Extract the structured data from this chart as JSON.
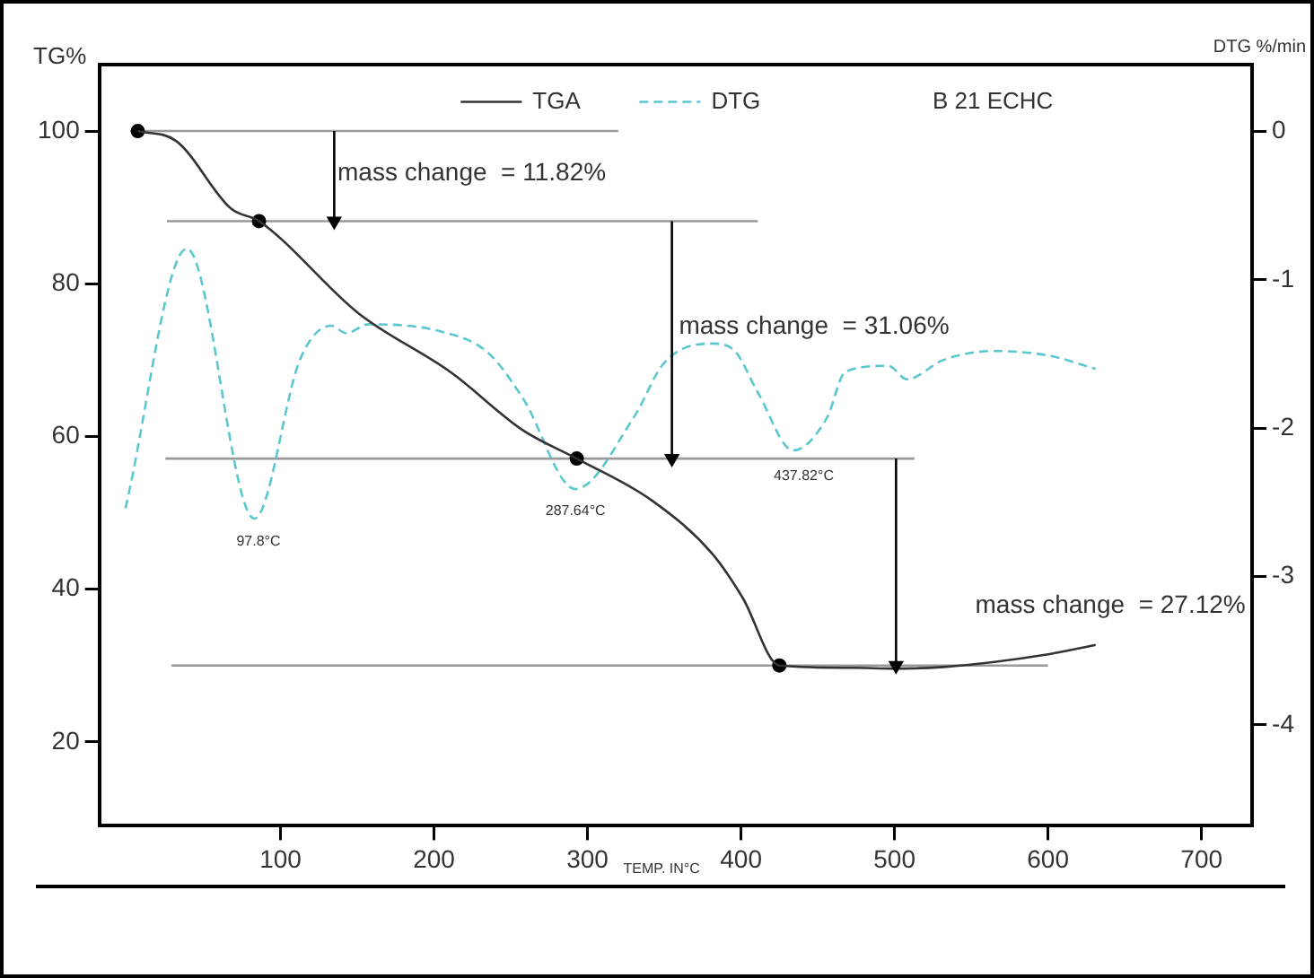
{
  "chart_data": {
    "type": "line",
    "xlabel": "TEMP. IN°C",
    "ylabel": "TG%",
    "y2label": "DTG %/min",
    "xlim": [
      -18,
      733
    ],
    "xticks": [
      100,
      200,
      300,
      400,
      500,
      600,
      700
    ],
    "ylim": [
      9,
      108.7
    ],
    "yticks": [
      20,
      40,
      60,
      80,
      100
    ],
    "y2lim": [
      -4.68,
      0.45
    ],
    "y2ticks": [
      0,
      -1,
      -2,
      -3,
      -4
    ],
    "grid": false,
    "legend": "top",
    "series": [
      {
        "name": "TGA",
        "type": "line",
        "color": "#333333",
        "line_style": "solid",
        "x": [
          7,
          32,
          68,
          86,
          151,
          211,
          258,
          293,
          342,
          381,
          401,
          425,
          473,
          500,
          532,
          601,
          631
        ],
        "values": [
          100,
          98.7,
          89.8,
          88.2,
          76.1,
          68.4,
          60.8,
          57.1,
          51.6,
          44.7,
          38.9,
          30,
          29.7,
          29.6,
          29.8,
          31.5,
          32.7
        ]
      },
      {
        "name": "DTG",
        "type": "line",
        "axis": "y2",
        "color": "#5bc8d0",
        "line_style": "dashed",
        "x": [
          -1,
          39,
          83,
          113,
          133,
          143,
          157,
          205,
          235,
          258,
          292,
          330,
          350,
          381,
          395,
          411,
          434,
          456,
          468,
          496,
          508,
          532,
          564,
          600,
          631
        ],
        "values": [
          -2.54,
          -0.79,
          -2.61,
          -1.53,
          -1.31,
          -1.36,
          -1.3,
          -1.35,
          -1.49,
          -1.8,
          -2.41,
          -1.93,
          -1.56,
          -1.43,
          -1.47,
          -1.76,
          -2.15,
          -1.93,
          -1.62,
          -1.58,
          -1.67,
          -1.54,
          -1.48,
          -1.51,
          -1.6
        ]
      },
      {
        "type": "scatter",
        "color": "#000000",
        "marker": "circle",
        "x": [
          7,
          86,
          293,
          425
        ],
        "values": [
          100,
          88.2,
          57.1,
          30
        ]
      },
      {
        "type": "line",
        "color": "#999999",
        "x": [
          7,
          320
        ],
        "values": [
          100,
          100
        ]
      },
      {
        "type": "line",
        "color": "#999999",
        "x": [
          26,
          411
        ],
        "values": [
          88.2,
          88.2
        ]
      },
      {
        "type": "line",
        "color": "#999999",
        "x": [
          25,
          513
        ],
        "values": [
          57.1,
          57.1
        ]
      },
      {
        "type": "line",
        "color": "#999999",
        "x": [
          29,
          600
        ],
        "values": [
          30,
          30
        ]
      },
      {
        "type": "line",
        "color": "#000000",
        "marker": "triangle",
        "x": [
          135,
          135
        ],
        "values": [
          100,
          88.2
        ]
      },
      {
        "type": "line",
        "color": "#000000",
        "marker": "triangle",
        "x": [
          355,
          355
        ],
        "values": [
          88.2,
          57.1
        ]
      },
      {
        "type": "line",
        "color": "#000000",
        "marker": "triangle",
        "x": [
          501,
          501
        ],
        "values": [
          57.1,
          30
        ]
      }
    ],
    "annotations": [
      "B 21 ECHC",
      "mass change  = 11.82%",
      "mass change  = 31.06%",
      "mass change  = 27.12%",
      "97.8°C",
      "287.64°C",
      "437.82°C"
    ]
  }
}
